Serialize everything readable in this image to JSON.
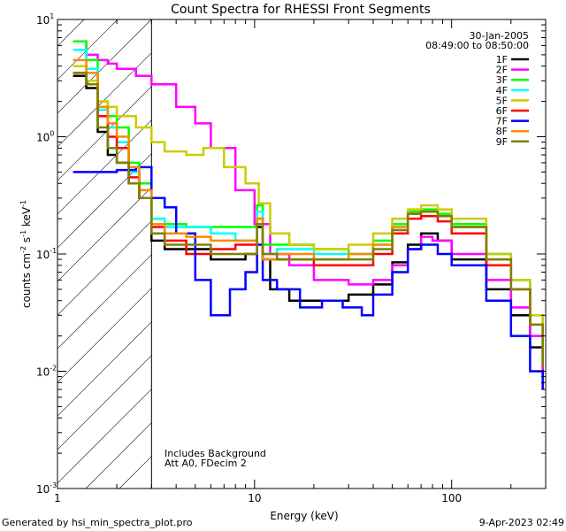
{
  "chart_data": {
    "type": "line",
    "title": "Count Spectra for RHESSI Front Segments",
    "xlabel": "Energy (keV)",
    "ylabel_parts": {
      "pre": "counts cm",
      "e1": "-2",
      "mid1": " s",
      "e2": "-1",
      "mid2": " keV",
      "e3": "-1"
    },
    "x_scale": "log",
    "y_scale": "log",
    "xlim": [
      1,
      300
    ],
    "ylim": [
      0.001,
      10
    ],
    "x_ticks": [
      {
        "value": 1,
        "label": "1"
      },
      {
        "value": 10,
        "label": "10"
      },
      {
        "value": 100,
        "label": "100"
      }
    ],
    "y_ticks": [
      {
        "value": 0.001,
        "base": "10",
        "exp": "-3"
      },
      {
        "value": 0.01,
        "base": "10",
        "exp": "-2"
      },
      {
        "value": 0.1,
        "base": "10",
        "exp": "-1"
      },
      {
        "value": 1,
        "base": "10",
        "exp": "0"
      },
      {
        "value": 10,
        "base": "10",
        "exp": "1"
      }
    ],
    "attenuator_cutoff_keV": 3,
    "date": "30-Jan-2005",
    "time_range": "08:49:00 to 08:50:00",
    "annotation_lines": [
      "Includes Background",
      "Att A0, FDecim 2"
    ],
    "series": [
      {
        "name": "1F",
        "color": "#000000",
        "points": [
          [
            1.2,
            3.3
          ],
          [
            1.4,
            2.6
          ],
          [
            1.6,
            1.1
          ],
          [
            1.8,
            0.7
          ],
          [
            2.0,
            0.6
          ],
          [
            2.3,
            0.4
          ],
          [
            2.6,
            0.3
          ],
          [
            3.0,
            0.13
          ],
          [
            3.5,
            0.11
          ],
          [
            4.5,
            0.11
          ],
          [
            6,
            0.09
          ],
          [
            7.5,
            0.09
          ],
          [
            9,
            0.1
          ],
          [
            10.3,
            0.17
          ],
          [
            11,
            0.09
          ],
          [
            12,
            0.05
          ],
          [
            15,
            0.04
          ],
          [
            20,
            0.04
          ],
          [
            30,
            0.045
          ],
          [
            40,
            0.055
          ],
          [
            50,
            0.085
          ],
          [
            60,
            0.12
          ],
          [
            70,
            0.15
          ],
          [
            85,
            0.13
          ],
          [
            100,
            0.09
          ],
          [
            150,
            0.05
          ],
          [
            200,
            0.03
          ],
          [
            250,
            0.016
          ],
          [
            290,
            0.009
          ]
        ]
      },
      {
        "name": "2F",
        "color": "#ff00ff",
        "points": [
          [
            1.2,
            6.5
          ],
          [
            1.4,
            5.0
          ],
          [
            1.6,
            4.5
          ],
          [
            1.8,
            4.2
          ],
          [
            2.0,
            3.8
          ],
          [
            2.5,
            3.3
          ],
          [
            3.0,
            2.8
          ],
          [
            4.0,
            1.8
          ],
          [
            5.0,
            1.3
          ],
          [
            6.0,
            0.8
          ],
          [
            8.0,
            0.35
          ],
          [
            10.0,
            0.18
          ],
          [
            12,
            0.1
          ],
          [
            15,
            0.08
          ],
          [
            20,
            0.06
          ],
          [
            30,
            0.055
          ],
          [
            40,
            0.06
          ],
          [
            50,
            0.08
          ],
          [
            60,
            0.11
          ],
          [
            70,
            0.14
          ],
          [
            80,
            0.13
          ],
          [
            100,
            0.1
          ],
          [
            150,
            0.06
          ],
          [
            200,
            0.035
          ],
          [
            250,
            0.02
          ],
          [
            290,
            0.01
          ]
        ]
      },
      {
        "name": "3F",
        "color": "#00ff00",
        "points": [
          [
            1.2,
            6.5
          ],
          [
            1.4,
            4.5
          ],
          [
            1.6,
            2.0
          ],
          [
            1.8,
            1.5
          ],
          [
            2.0,
            1.2
          ],
          [
            2.3,
            0.6
          ],
          [
            2.6,
            0.4
          ],
          [
            3.0,
            0.2
          ],
          [
            3.5,
            0.18
          ],
          [
            4.5,
            0.17
          ],
          [
            6,
            0.17
          ],
          [
            8,
            0.17
          ],
          [
            10.3,
            0.26
          ],
          [
            11,
            0.12
          ],
          [
            13,
            0.12
          ],
          [
            20,
            0.11
          ],
          [
            30,
            0.1
          ],
          [
            40,
            0.13
          ],
          [
            50,
            0.18
          ],
          [
            60,
            0.23
          ],
          [
            70,
            0.24
          ],
          [
            85,
            0.22
          ],
          [
            100,
            0.18
          ],
          [
            150,
            0.1
          ],
          [
            200,
            0.06
          ],
          [
            250,
            0.03
          ],
          [
            290,
            0.012
          ]
        ]
      },
      {
        "name": "4F",
        "color": "#00ffff",
        "points": [
          [
            1.2,
            5.5
          ],
          [
            1.4,
            3.8
          ],
          [
            1.6,
            1.7
          ],
          [
            1.8,
            1.2
          ],
          [
            2.0,
            0.9
          ],
          [
            2.3,
            0.5
          ],
          [
            2.6,
            0.35
          ],
          [
            3.0,
            0.2
          ],
          [
            3.5,
            0.17
          ],
          [
            4.5,
            0.17
          ],
          [
            6,
            0.15
          ],
          [
            8,
            0.13
          ],
          [
            10.3,
            0.23
          ],
          [
            11,
            0.1
          ],
          [
            13,
            0.11
          ],
          [
            20,
            0.1
          ],
          [
            30,
            0.1
          ],
          [
            40,
            0.12
          ],
          [
            50,
            0.17
          ],
          [
            60,
            0.22
          ],
          [
            70,
            0.23
          ],
          [
            85,
            0.21
          ],
          [
            100,
            0.17
          ],
          [
            150,
            0.1
          ],
          [
            200,
            0.06
          ],
          [
            250,
            0.03
          ],
          [
            290,
            0.012
          ]
        ]
      },
      {
        "name": "5F",
        "color": "#cccc00",
        "points": [
          [
            1.2,
            4.0
          ],
          [
            1.4,
            3.0
          ],
          [
            1.6,
            2.0
          ],
          [
            1.8,
            1.8
          ],
          [
            2.0,
            1.5
          ],
          [
            2.5,
            1.2
          ],
          [
            3.0,
            0.9
          ],
          [
            3.5,
            0.75
          ],
          [
            4.5,
            0.7
          ],
          [
            5.5,
            0.8
          ],
          [
            7,
            0.55
          ],
          [
            9,
            0.4
          ],
          [
            10.5,
            0.27
          ],
          [
            12,
            0.15
          ],
          [
            15,
            0.12
          ],
          [
            20,
            0.11
          ],
          [
            30,
            0.12
          ],
          [
            40,
            0.15
          ],
          [
            50,
            0.2
          ],
          [
            60,
            0.24
          ],
          [
            70,
            0.26
          ],
          [
            85,
            0.24
          ],
          [
            100,
            0.2
          ],
          [
            150,
            0.1
          ],
          [
            200,
            0.06
          ],
          [
            250,
            0.03
          ],
          [
            290,
            0.012
          ]
        ]
      },
      {
        "name": "6F",
        "color": "#ff0000",
        "points": [
          [
            1.2,
            3.5
          ],
          [
            1.4,
            2.8
          ],
          [
            1.6,
            1.5
          ],
          [
            1.8,
            1.0
          ],
          [
            2.0,
            0.8
          ],
          [
            2.3,
            0.45
          ],
          [
            2.6,
            0.3
          ],
          [
            3.0,
            0.17
          ],
          [
            3.5,
            0.13
          ],
          [
            4.5,
            0.1
          ],
          [
            6,
            0.11
          ],
          [
            8,
            0.12
          ],
          [
            10.3,
            0.2
          ],
          [
            11,
            0.09
          ],
          [
            13,
            0.09
          ],
          [
            20,
            0.08
          ],
          [
            30,
            0.08
          ],
          [
            40,
            0.1
          ],
          [
            50,
            0.15
          ],
          [
            60,
            0.2
          ],
          [
            70,
            0.21
          ],
          [
            85,
            0.19
          ],
          [
            100,
            0.15
          ],
          [
            150,
            0.08
          ],
          [
            200,
            0.05
          ],
          [
            250,
            0.025
          ],
          [
            290,
            0.011
          ]
        ]
      },
      {
        "name": "7F",
        "color": "#0000ff",
        "points": [
          [
            1.2,
            0.5
          ],
          [
            1.5,
            0.5
          ],
          [
            2.0,
            0.52
          ],
          [
            2.5,
            0.55
          ],
          [
            3.0,
            0.3
          ],
          [
            3.5,
            0.25
          ],
          [
            4.0,
            0.15
          ],
          [
            5.0,
            0.06
          ],
          [
            6.0,
            0.03
          ],
          [
            7.5,
            0.05
          ],
          [
            9,
            0.07
          ],
          [
            10.3,
            0.12
          ],
          [
            11,
            0.06
          ],
          [
            13,
            0.05
          ],
          [
            17,
            0.035
          ],
          [
            22,
            0.04
          ],
          [
            28,
            0.035
          ],
          [
            35,
            0.03
          ],
          [
            40,
            0.045
          ],
          [
            50,
            0.07
          ],
          [
            60,
            0.11
          ],
          [
            70,
            0.12
          ],
          [
            85,
            0.1
          ],
          [
            100,
            0.08
          ],
          [
            150,
            0.04
          ],
          [
            200,
            0.02
          ],
          [
            250,
            0.01
          ],
          [
            290,
            0.007
          ]
        ]
      },
      {
        "name": "8F",
        "color": "#ff8800",
        "points": [
          [
            1.2,
            4.5
          ],
          [
            1.4,
            3.5
          ],
          [
            1.6,
            1.8
          ],
          [
            1.8,
            1.3
          ],
          [
            2.0,
            1.0
          ],
          [
            2.3,
            0.55
          ],
          [
            2.6,
            0.35
          ],
          [
            3.0,
            0.18
          ],
          [
            3.5,
            0.15
          ],
          [
            4.5,
            0.14
          ],
          [
            6,
            0.13
          ],
          [
            8,
            0.13
          ],
          [
            10.3,
            0.2
          ],
          [
            11,
            0.09
          ],
          [
            13,
            0.1
          ],
          [
            20,
            0.09
          ],
          [
            30,
            0.1
          ],
          [
            40,
            0.12
          ],
          [
            50,
            0.17
          ],
          [
            60,
            0.22
          ],
          [
            70,
            0.23
          ],
          [
            85,
            0.21
          ],
          [
            100,
            0.17
          ],
          [
            150,
            0.09
          ],
          [
            200,
            0.05
          ],
          [
            250,
            0.025
          ],
          [
            290,
            0.011
          ]
        ]
      },
      {
        "name": "9F",
        "color": "#808000",
        "points": [
          [
            1.2,
            3.5
          ],
          [
            1.4,
            2.8
          ],
          [
            1.6,
            1.2
          ],
          [
            1.8,
            0.8
          ],
          [
            2.0,
            0.6
          ],
          [
            2.3,
            0.4
          ],
          [
            2.6,
            0.3
          ],
          [
            3.0,
            0.15
          ],
          [
            3.5,
            0.12
          ],
          [
            4.5,
            0.12
          ],
          [
            6,
            0.1
          ],
          [
            8,
            0.1
          ],
          [
            10.3,
            0.18
          ],
          [
            11,
            0.1
          ],
          [
            13,
            0.09
          ],
          [
            20,
            0.09
          ],
          [
            30,
            0.09
          ],
          [
            40,
            0.11
          ],
          [
            50,
            0.16
          ],
          [
            60,
            0.22
          ],
          [
            70,
            0.23
          ],
          [
            85,
            0.21
          ],
          [
            100,
            0.17
          ],
          [
            150,
            0.09
          ],
          [
            200,
            0.05
          ],
          [
            250,
            0.025
          ],
          [
            290,
            0.011
          ]
        ]
      }
    ]
  },
  "footer": {
    "left": "Generated by hsi_min_spectra_plot.pro",
    "right": "9-Apr-2023 02:49"
  }
}
